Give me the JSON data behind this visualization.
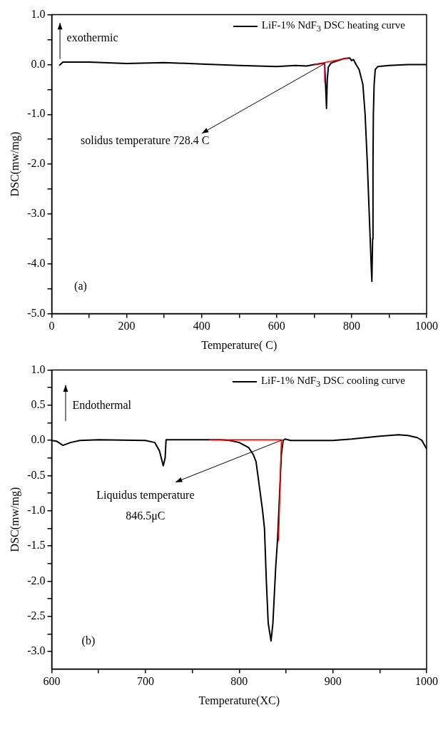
{
  "chart_data": [
    {
      "type": "line",
      "xlabel": "Temperature( C)",
      "ylabel": "DSC(mw/mg)",
      "xlim": [
        0,
        1000
      ],
      "ylim": [
        -5,
        1
      ],
      "xticks": [
        0,
        {
          "value": 100,
          "label": null
        },
        200,
        {
          "value": 300,
          "label": null
        },
        400,
        {
          "value": 500,
          "label": null
        },
        600,
        {
          "value": 700,
          "label": null
        },
        800,
        {
          "value": 900,
          "label": null
        },
        1000
      ],
      "yticks": [
        {
          "value": -5,
          "label": "-5.0"
        },
        {
          "value": -4.5,
          "label": null
        },
        {
          "value": -4,
          "label": "-4.0"
        },
        {
          "value": -3.5,
          "label": null
        },
        {
          "value": -3,
          "label": "-3.0"
        },
        {
          "value": -2.5,
          "label": null
        },
        {
          "value": -2,
          "label": "-2.0"
        },
        {
          "value": -1.5,
          "label": null
        },
        {
          "value": -1,
          "label": "-1.0"
        },
        {
          "value": -0.5,
          "label": null
        },
        {
          "value": 0,
          "label": "0.0"
        },
        {
          "value": 0.5,
          "label": null
        },
        {
          "value": 1,
          "label": "1.0"
        }
      ],
      "grid": false,
      "legend": "top right",
      "marker": "none",
      "line_style": "solid",
      "series": [
        {
          "name": "LiF-1% NdF$_{3}$ DSC heating curve",
          "color": "#000000",
          "x": [
            20,
            30,
            100,
            200,
            300,
            400,
            500,
            550,
            600,
            650,
            680,
            700,
            720,
            728,
            731,
            733,
            735,
            738,
            745,
            760,
            780,
            795,
            800,
            805,
            812,
            820,
            830,
            836,
            842,
            847,
            852,
            854,
            856,
            857,
            858,
            860,
            863,
            870,
            900,
            950,
            1000
          ],
          "values": [
            -0.02,
            0.05,
            0.05,
            0.02,
            0.04,
            0.01,
            -0.02,
            -0.03,
            -0.04,
            -0.02,
            -0.03,
            0.0,
            0.02,
            0.02,
            -0.5,
            -0.88,
            -0.3,
            -0.05,
            0.03,
            0.07,
            0.12,
            0.13,
            0.08,
            0.1,
            0.0,
            -0.1,
            -0.4,
            -1.0,
            -2.0,
            -3.0,
            -4.0,
            -4.35,
            -3.5,
            -2.0,
            -1.0,
            -0.4,
            -0.1,
            -0.04,
            -0.02,
            0.0,
            0.0
          ]
        },
        {
          "color": "#ff0000",
          "x": [
            700,
            790
          ],
          "values": [
            0.0,
            0.13
          ]
        },
        {
          "color": "#e6007e",
          "x": [
            728,
            728
          ],
          "values": [
            0.03,
            -0.35
          ]
        }
      ],
      "annotations": [
        "exothermic",
        {
          "text": "solidus temperature 728.4 C",
          "x": 728.4,
          "y": 0.02
        },
        "(a)"
      ]
    },
    {
      "type": "line",
      "xlabel": "Temperature(XC)",
      "ylabel": "DSC(mw/mg)",
      "xlim": [
        600,
        1000
      ],
      "ylim": [
        -3.25,
        1
      ],
      "xticks": [
        600,
        {
          "value": 650,
          "label": null
        },
        700,
        {
          "value": 750,
          "label": null
        },
        800,
        {
          "value": 850,
          "label": null
        },
        900,
        {
          "value": 950,
          "label": null
        },
        1000
      ],
      "yticks": [
        {
          "value": -3,
          "label": "-3.0"
        },
        {
          "value": -2.75,
          "label": null
        },
        {
          "value": -2.5,
          "label": "-2.5"
        },
        {
          "value": -2.25,
          "label": null
        },
        {
          "value": -2,
          "label": "-2.0"
        },
        {
          "value": -1.75,
          "label": null
        },
        {
          "value": -1.5,
          "label": "-1.5"
        },
        {
          "value": -1.25,
          "label": null
        },
        {
          "value": -1,
          "label": "-1.0"
        },
        {
          "value": -0.75,
          "label": null
        },
        {
          "value": -0.5,
          "label": "-0.5"
        },
        {
          "value": -0.25,
          "label": null
        },
        {
          "value": 0,
          "label": "0.0"
        },
        {
          "value": 0.25,
          "label": null
        },
        {
          "value": 0.5,
          "label": "0.5"
        },
        {
          "value": 0.75,
          "label": null
        },
        {
          "value": 1,
          "label": "1.0"
        }
      ],
      "grid": false,
      "legend": "top right",
      "marker": "none",
      "line_style": "solid",
      "series": [
        {
          "name": "LiF-1% NdF$_{3}$ DSC cooling curve",
          "color": "#000000",
          "x": [
            600,
            605,
            612,
            620,
            630,
            650,
            700,
            710,
            715,
            719,
            721,
            722,
            750,
            780,
            790,
            800,
            810,
            815,
            818,
            820,
            822,
            825,
            827,
            829,
            831,
            834,
            836,
            839,
            841,
            843,
            845,
            847,
            849,
            855,
            900,
            920,
            950,
            970,
            980,
            990,
            995,
            1000
          ],
          "values": [
            0.0,
            -0.01,
            -0.07,
            -0.03,
            0.0,
            0.01,
            0.0,
            -0.03,
            -0.15,
            -0.36,
            -0.25,
            0.01,
            0.01,
            0.01,
            0.0,
            -0.03,
            -0.1,
            -0.2,
            -0.3,
            -0.5,
            -0.7,
            -1.0,
            -1.25,
            -2.0,
            -2.6,
            -2.85,
            -2.6,
            -1.8,
            -1.4,
            -0.8,
            -0.2,
            0.0,
            0.02,
            0.0,
            0.0,
            0.02,
            0.06,
            0.08,
            0.07,
            0.04,
            0.0,
            -0.12
          ]
        },
        {
          "color": "#ff0000",
          "x": [
            768,
            845
          ],
          "values": [
            0.01,
            0.01
          ]
        },
        {
          "color": "#ff0000",
          "x": [
            845,
            842
          ],
          "values": [
            0.01,
            -1.43
          ]
        }
      ],
      "annotations": [
        "Endothermal",
        {
          "text": "Liquidus temperature\n846.5μC",
          "x": 846.5,
          "y": 0.01
        },
        "(b)"
      ]
    }
  ]
}
